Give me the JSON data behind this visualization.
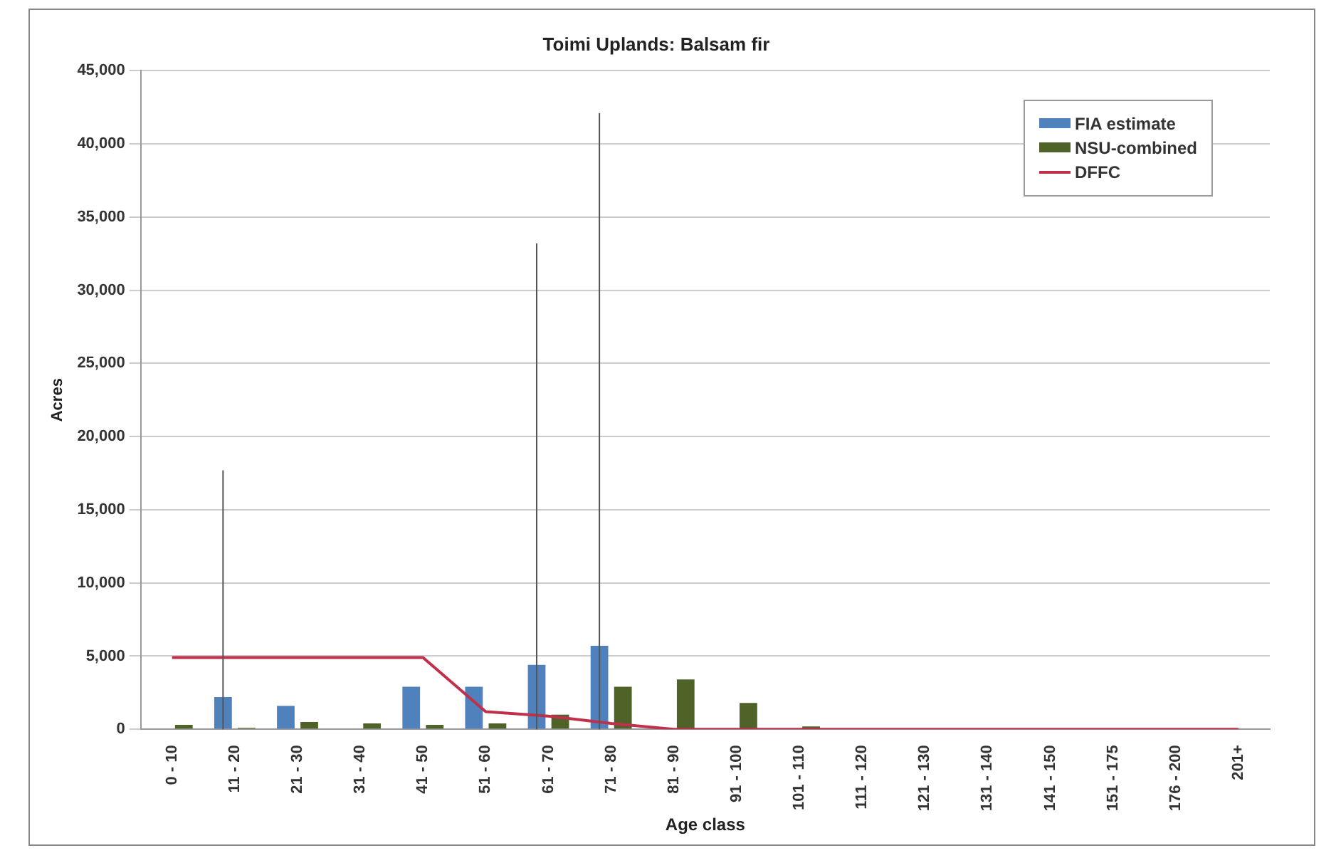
{
  "chart_data": {
    "type": "bar",
    "title": "Toimi Uplands: Balsam fir",
    "xlabel": "Age class",
    "ylabel": "Acres",
    "categories": [
      "0 - 10",
      "11 - 20",
      "21 - 30",
      "31 - 40",
      "41 - 50",
      "51 - 60",
      "61 - 70",
      "71 - 80",
      "81 - 90",
      "91 - 100",
      "101 - 110",
      "111 - 120",
      "121 - 130",
      "131 - 140",
      "141 - 150",
      "151 - 175",
      "176 - 200",
      "201+"
    ],
    "series": [
      {
        "name": "FIA estimate",
        "color": "#4f81bd",
        "values": [
          0,
          2200,
          1600,
          0,
          2900,
          2900,
          4400,
          5700,
          0,
          0,
          0,
          0,
          0,
          0,
          0,
          0,
          0,
          0
        ],
        "errors": [
          null,
          [
            0,
            17700
          ],
          null,
          null,
          null,
          null,
          [
            0,
            33200
          ],
          [
            0,
            42100
          ],
          null,
          null,
          null,
          null,
          null,
          null,
          null,
          null,
          null,
          null
        ]
      },
      {
        "name": "NSU-combined",
        "color": "#4f6228",
        "values": [
          300,
          100,
          500,
          400,
          300,
          400,
          1000,
          2900,
          3400,
          1800,
          200,
          0,
          0,
          0,
          0,
          0,
          0,
          0
        ]
      },
      {
        "name": "DFFC",
        "type": "line",
        "color": "#c0304a",
        "values": [
          4900,
          4900,
          4900,
          4900,
          4900,
          1200,
          900,
          400,
          0,
          0,
          0,
          0,
          0,
          0,
          0,
          0,
          0,
          0
        ]
      }
    ],
    "ylim": [
      0,
      45000
    ],
    "yticks": [
      {
        "value": 0,
        "label": "0"
      },
      {
        "value": 5000,
        "label": "5,000"
      },
      {
        "value": 10000,
        "label": "10,000"
      },
      {
        "value": 15000,
        "label": "15,000"
      },
      {
        "value": 20000,
        "label": "20,000"
      },
      {
        "value": 25000,
        "label": "25,000"
      },
      {
        "value": 30000,
        "label": "30,000"
      },
      {
        "value": 35000,
        "label": "35,000"
      },
      {
        "value": 40000,
        "label": "40,000"
      },
      {
        "value": 45000,
        "label": "45,000"
      }
    ],
    "grid": "y",
    "legend": "top right",
    "marker": "none"
  }
}
